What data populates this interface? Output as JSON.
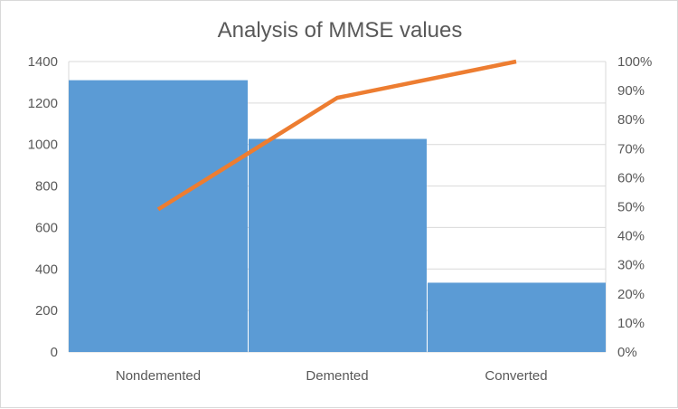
{
  "chart_data": {
    "type": "bar",
    "subtype": "pareto",
    "title": "Analysis of MMSE values",
    "categories": [
      "Nondemented",
      "Demented",
      "Converted"
    ],
    "series": [
      {
        "type": "bar",
        "axis": "left",
        "values": [
          1310,
          1027,
          334
        ],
        "color": "#5b9bd5"
      },
      {
        "type": "line",
        "axis": "right",
        "values": [
          49.1,
          87.5,
          100
        ],
        "color": "#ed7d31"
      }
    ],
    "y_left": {
      "min": 0,
      "max": 1400,
      "step": 200,
      "ticks": [
        "0",
        "200",
        "400",
        "600",
        "800",
        "1000",
        "1200",
        "1400"
      ]
    },
    "y_right": {
      "min": 0,
      "max": 100,
      "step": 10,
      "ticks": [
        "0%",
        "10%",
        "20%",
        "30%",
        "40%",
        "50%",
        "60%",
        "70%",
        "80%",
        "90%",
        "100%"
      ]
    },
    "xlabel": "",
    "ylabel": "",
    "grid": true,
    "legend": "none"
  }
}
